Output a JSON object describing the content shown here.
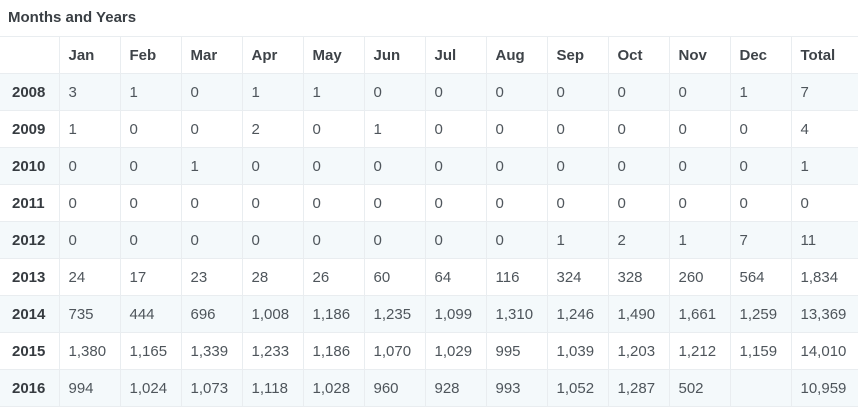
{
  "page": {
    "title": "Months and Years"
  },
  "colors": {
    "highlight_cell": "#b5e1f0",
    "stripe_row": "#f4f9fb",
    "border": "#e9edf0"
  },
  "table": {
    "columns": [
      "",
      "Jan",
      "Feb",
      "Mar",
      "Apr",
      "May",
      "Jun",
      "Jul",
      "Aug",
      "Sep",
      "Oct",
      "Nov",
      "Dec",
      "Total"
    ],
    "rows": [
      {
        "year": "2008",
        "values": [
          "3",
          "1",
          "0",
          "1",
          "1",
          "0",
          "0",
          "0",
          "0",
          "0",
          "0",
          "1",
          "7"
        ]
      },
      {
        "year": "2009",
        "values": [
          "1",
          "0",
          "0",
          "2",
          "0",
          "1",
          "0",
          "0",
          "0",
          "0",
          "0",
          "0",
          "4"
        ]
      },
      {
        "year": "2010",
        "values": [
          "0",
          "0",
          "1",
          "0",
          "0",
          "0",
          "0",
          "0",
          "0",
          "0",
          "0",
          "0",
          "1"
        ]
      },
      {
        "year": "2011",
        "values": [
          "0",
          "0",
          "0",
          "0",
          "0",
          "0",
          "0",
          "0",
          "0",
          "0",
          "0",
          "0",
          "0"
        ]
      },
      {
        "year": "2012",
        "values": [
          "0",
          "0",
          "0",
          "0",
          "0",
          "0",
          "0",
          "0",
          "1",
          "2",
          "1",
          "7",
          "11"
        ]
      },
      {
        "year": "2013",
        "values": [
          "24",
          "17",
          "23",
          "28",
          "26",
          "60",
          "64",
          "116",
          "324",
          "328",
          "260",
          "564",
          "1,834"
        ]
      },
      {
        "year": "2014",
        "values": [
          "735",
          "444",
          "696",
          "1,008",
          "1,186",
          "1,235",
          "1,099",
          "1,310",
          "1,246",
          "1,490",
          "1,661",
          "1,259",
          "13,369"
        ]
      },
      {
        "year": "2015",
        "values": [
          "1,380",
          "1,165",
          "1,339",
          "1,233",
          "1,186",
          "1,070",
          "1,029",
          "995",
          "1,039",
          "1,203",
          "1,212",
          "1,159",
          "14,010"
        ]
      },
      {
        "year": "2016",
        "values": [
          "994",
          "1,024",
          "1,073",
          "1,118",
          "1,028",
          "960",
          "928",
          "993",
          "1,052",
          "1,287",
          "502",
          "",
          "10,959"
        ]
      }
    ],
    "highlight": {
      "row_index": 6,
      "value_index": 10,
      "year": "2014",
      "month": "Nov"
    }
  }
}
